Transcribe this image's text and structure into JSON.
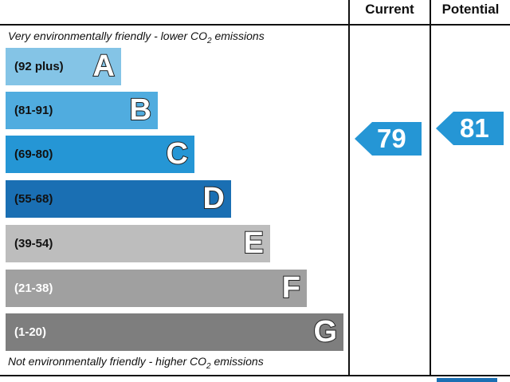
{
  "header": {
    "current": "Current",
    "potential": "Potential"
  },
  "notes": {
    "top_prefix": "Very environmentally friendly - lower C",
    "top_o": "O",
    "top_sub": "2",
    "top_suffix": " emissions",
    "bottom_prefix": "Not environmentally friendly - higher C",
    "bottom_o": "O",
    "bottom_sub": "2",
    "bottom_suffix": " emissions"
  },
  "bands": [
    {
      "range": "(92 plus)",
      "letter": "A",
      "color": "#84c4e6",
      "range_color": "#111111"
    },
    {
      "range": "(81-91)",
      "letter": "B",
      "color": "#50acdf",
      "range_color": "#111111"
    },
    {
      "range": "(69-80)",
      "letter": "C",
      "color": "#2596d5",
      "range_color": "#111111"
    },
    {
      "range": "(55-68)",
      "letter": "D",
      "color": "#1a6fb3",
      "range_color": "#111111"
    },
    {
      "range": "(39-54)",
      "letter": "E",
      "color": "#bdbdbd",
      "range_color": "#111111"
    },
    {
      "range": "(21-38)",
      "letter": "F",
      "color": "#a0a0a0",
      "range_color": "#ffffff"
    },
    {
      "range": "(1-20)",
      "letter": "G",
      "color": "#7e7e7e",
      "range_color": "#ffffff"
    }
  ],
  "ratings": {
    "current": "79",
    "potential": "81",
    "arrow_color": "#2596d5"
  }
}
